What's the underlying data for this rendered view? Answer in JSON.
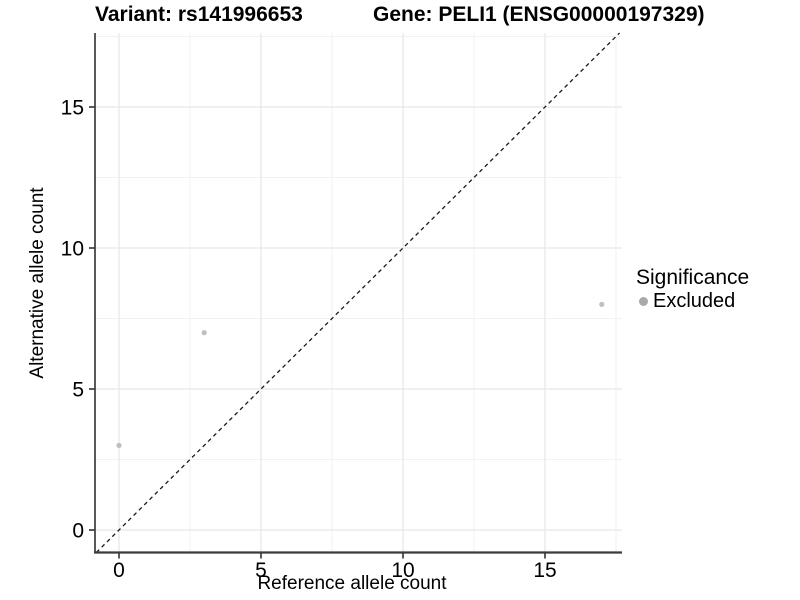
{
  "chart_data": {
    "type": "scatter",
    "title_left": "Variant: rs141996653",
    "title_right": "Gene: PELI1 (ENSG00000197329)",
    "xlabel": "Reference allele count",
    "ylabel": "Alternative allele count",
    "xlim": [
      -0.85,
      17.7
    ],
    "ylim": [
      -0.8,
      17.6
    ],
    "xticks": [
      0,
      5,
      10,
      15
    ],
    "yticks": [
      0,
      5,
      10,
      15
    ],
    "x_minor_gridlines": [
      2.5,
      7.5,
      12.5,
      17.5
    ],
    "y_minor_gridlines": [
      2.5,
      7.5,
      12.5,
      17.5
    ],
    "grid": true,
    "points": [
      {
        "x": 0,
        "y": 3,
        "series": "Excluded"
      },
      {
        "x": 3,
        "y": 7,
        "series": "Excluded"
      },
      {
        "x": 17,
        "y": 8,
        "series": "Excluded"
      }
    ],
    "diagonal_line": {
      "slope": 1,
      "intercept": 0,
      "style": "dashed"
    },
    "legend": {
      "title": "Significance",
      "position": "right",
      "items": [
        {
          "label": "Excluded",
          "marker": "circle"
        }
      ]
    },
    "colors": {
      "point": "#bfbfbf",
      "legend_marker": "#a9a9a9",
      "grid_major": "#e7e7e7",
      "grid_minor": "#f2f2f2",
      "axis_line": "#3c3c3c",
      "diagonal": "#1a1a1a",
      "text": "#000000",
      "background": "#ffffff"
    }
  }
}
